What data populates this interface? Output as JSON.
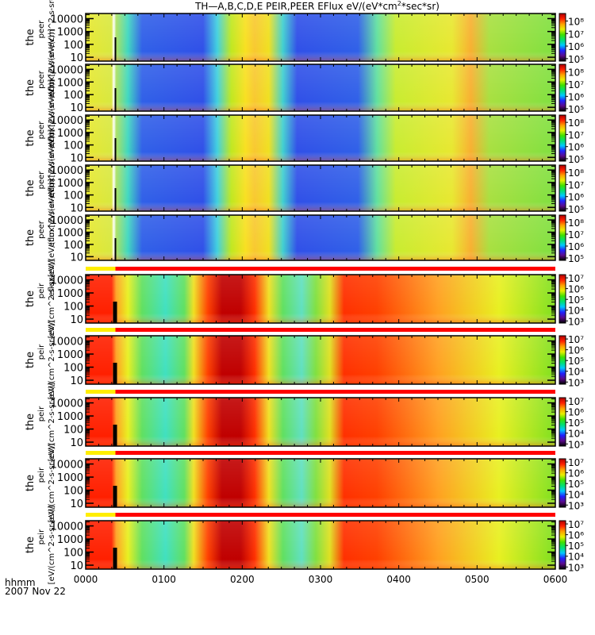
{
  "chart_data": {
    "type": "heatmap",
    "title": "TH—A,B,C,D,E  PEIR,PEER  EFlux  eV/(eV*cm",
    "title_sup": "2",
    "title_tail": "*sec*sr)",
    "x_tick_labels": [
      "0000",
      "0100",
      "0200",
      "0300",
      "0400",
      "0500",
      "0600"
    ],
    "x_range_hours": [
      0,
      6
    ],
    "x_footer_label": "hhmm",
    "date_label": "2007 Nov 22",
    "y_tick_labels": [
      "10000",
      "1000",
      "100",
      "10"
    ],
    "y_range_eV": [
      5,
      25000
    ],
    "y_scale": "log",
    "panel_groups": [
      {
        "name": "peer",
        "ylabel_main": "the",
        "ylabel_sub": "peer",
        "ylabel_units": "eflux[eV/(eV/(cm^2-s-sr-eV))]",
        "count": 5,
        "colorbar_ticks": [
          "10⁸",
          "10⁷",
          "10⁶",
          "10⁵"
        ],
        "colorbar_exponents": [
          8,
          7,
          6,
          5
        ],
        "colorbar_range_log": [
          4.8,
          8.6
        ],
        "status_bar": false
      },
      {
        "name": "peir",
        "ylabel_main": "the",
        "ylabel_sub": "peir",
        "ylabel_units": "[eV/(cm^2-s-sr-eV)]",
        "count": 5,
        "colorbar_ticks": [
          "10⁷",
          "10⁶",
          "10⁵",
          "10⁴",
          "10³"
        ],
        "colorbar_exponents": [
          7,
          6,
          5,
          4,
          3
        ],
        "colorbar_range_log": [
          2.8,
          7.3
        ],
        "status_bar": true,
        "status_bar_segments": [
          {
            "from_hour": 0.0,
            "to_hour": 0.38,
            "color": "#ffee00"
          },
          {
            "from_hour": 0.38,
            "to_hour": 6.0,
            "color": "#ff0000"
          }
        ]
      }
    ],
    "colormap": [
      "#000000",
      "#5a0a8a",
      "#2020ff",
      "#00c8ff",
      "#00e070",
      "#40e000",
      "#e8f000",
      "#ffa000",
      "#ff2000",
      "#b00000"
    ]
  }
}
